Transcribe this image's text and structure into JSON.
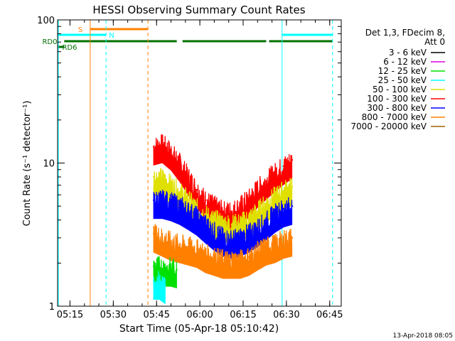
{
  "chart_data": {
    "type": "line",
    "title": "HESSI Observing Summary Count Rates",
    "xlabel": "Start Time (05-Apr-18 05:10:42)",
    "ylabel": "Count Rate (s⁻¹ detector⁻¹)",
    "y_scale": "log",
    "ylim": [
      1,
      100
    ],
    "xlim": [
      "05:10:42",
      "06:49:00"
    ],
    "x_ticks": [
      "05:15",
      "05:30",
      "05:45",
      "06:00",
      "06:15",
      "06:30",
      "06:45"
    ],
    "y_ticks": [
      "1",
      "10",
      "100"
    ],
    "timestamp": "13-Apr-2018 08:05",
    "legend": {
      "placement": "right",
      "header": [
        "Det 1,3, FDecim 8,",
        "Att 0"
      ],
      "entries": [
        {
          "label": "3 - 6 keV",
          "color": "#000000"
        },
        {
          "label": "6 - 12 keV",
          "color": "#e000e0"
        },
        {
          "label": "12 - 25 keV",
          "color": "#00e000"
        },
        {
          "label": "25 - 50 keV",
          "color": "#00ffff"
        },
        {
          "label": "50 - 100 keV",
          "color": "#e0e000"
        },
        {
          "label": "100 - 300 keV",
          "color": "#ff0000"
        },
        {
          "label": "300 - 800 keV",
          "color": "#0000ff"
        },
        {
          "label": "800 - 7000 keV",
          "color": "#ff8000"
        },
        {
          "label": "7000 - 20000 keV",
          "color": "#a06000"
        }
      ]
    },
    "flag_bars": [
      {
        "label": "S",
        "color": "#ff8000",
        "segments": [
          [
            "05:22:00",
            "05:42:00"
          ]
        ]
      },
      {
        "label": "N",
        "color": "#00ffff",
        "segments": [
          [
            "05:10:42",
            "05:27:30"
          ],
          [
            "06:28:30",
            "06:46:00"
          ]
        ]
      },
      {
        "label": "RD0",
        "color": "#007000",
        "segments": [
          [
            "05:13:00",
            "05:42:00"
          ],
          [
            "05:42:00",
            "05:52:00"
          ],
          [
            "05:54:00",
            "06:23:00"
          ],
          [
            "06:24:00",
            "06:46:00"
          ]
        ]
      },
      {
        "label": "RD6",
        "color": "#007000",
        "segments": [
          [
            "05:10:42",
            "05:13:00"
          ]
        ]
      }
    ],
    "markers": [
      {
        "time": "05:22:00",
        "color": "#ff8000",
        "style": "solid"
      },
      {
        "time": "05:27:30",
        "color": "#00ffff",
        "style": "dashed"
      },
      {
        "time": "05:42:00",
        "color": "#ff8000",
        "style": "dashed"
      },
      {
        "time": "06:28:30",
        "color": "#00ffff",
        "style": "solid"
      },
      {
        "time": "06:46:00",
        "color": "#00ffff",
        "style": "dashed"
      },
      {
        "time": "05:11:00",
        "color": "#00ffff",
        "style": "solid"
      }
    ],
    "series": [
      {
        "name": "100 - 300 keV",
        "color": "#ff0000",
        "x": [
          "05:44",
          "05:47",
          "05:50",
          "05:53",
          "05:56",
          "05:59",
          "06:02",
          "06:05",
          "06:08",
          "06:11",
          "06:14",
          "06:17",
          "06:20",
          "06:23",
          "06:26",
          "06:29",
          "06:32"
        ],
        "y": [
          13,
          13.5,
          12,
          10,
          8,
          6.5,
          5.5,
          5,
          4.6,
          4.6,
          5,
          5.6,
          6.6,
          7.5,
          8.5,
          9.5,
          10.5
        ]
      },
      {
        "name": "50 - 100 keV",
        "color": "#e0e000",
        "x": [
          "05:44",
          "05:47",
          "05:50",
          "05:53",
          "05:56",
          "05:59",
          "06:02",
          "06:05",
          "06:08",
          "06:11",
          "06:14",
          "06:17",
          "06:20",
          "06:23",
          "06:26",
          "06:29",
          "06:32"
        ],
        "y": [
          8,
          7.8,
          7,
          6.3,
          5.5,
          4.8,
          4.3,
          4.0,
          3.8,
          3.7,
          3.8,
          4.1,
          4.6,
          5.2,
          5.8,
          6.4,
          6.8
        ]
      },
      {
        "name": "300 - 800 keV",
        "color": "#0000ff",
        "x": [
          "05:44",
          "05:47",
          "05:50",
          "05:53",
          "05:56",
          "05:59",
          "06:02",
          "06:05",
          "06:08",
          "06:11",
          "06:14",
          "06:17",
          "06:20",
          "06:23",
          "06:26",
          "06:29",
          "06:32"
        ],
        "y": [
          5.5,
          5.5,
          5.3,
          5.0,
          4.6,
          4.2,
          3.7,
          3.3,
          3.0,
          2.9,
          3.0,
          3.2,
          3.5,
          3.9,
          4.4,
          4.8,
          5.0
        ]
      },
      {
        "name": "800 - 7000 keV",
        "color": "#ff8000",
        "x": [
          "05:44",
          "05:47",
          "05:50",
          "05:53",
          "05:56",
          "05:59",
          "06:02",
          "06:05",
          "06:08",
          "06:11",
          "06:14",
          "06:17",
          "06:20",
          "06:23",
          "06:26",
          "06:29",
          "06:32"
        ],
        "y": [
          3.2,
          3.0,
          2.8,
          2.7,
          2.6,
          2.5,
          2.3,
          2.2,
          2.1,
          2.1,
          2.1,
          2.2,
          2.4,
          2.6,
          2.7,
          2.9,
          3.0
        ]
      },
      {
        "name": "12 - 25 keV",
        "color": "#00e000",
        "x": [
          "05:44",
          "05:46",
          "05:48",
          "05:50",
          "05:52"
        ],
        "y": [
          1.9,
          1.9,
          1.85,
          1.85,
          1.8
        ]
      },
      {
        "name": "25 - 50 keV",
        "color": "#00ffff",
        "x": [
          "05:44",
          "05:46",
          "05:48"
        ],
        "y": [
          1.5,
          1.5,
          1.4
        ]
      }
    ]
  }
}
